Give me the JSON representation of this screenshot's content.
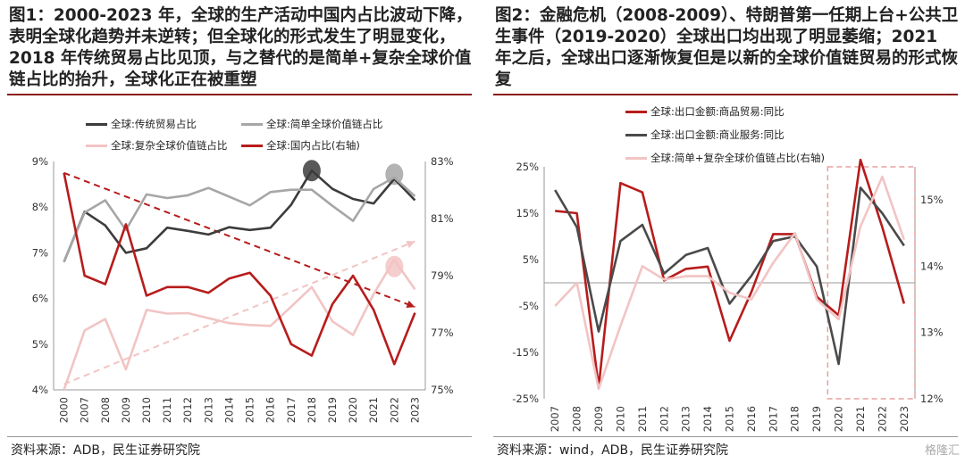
{
  "panels": [
    {
      "title": "图1：2000-2023 年，全球的生产活动中国内占比波动下降，表明全球化趋势并未逆转；但全球化的形式发生了明显变化，2018 年传统贸易占比见顶，与之替代的是简单+复杂全球价值链占比的抬升，全球化正在被重塑",
      "source": "资料来源：ADB，民生证券研究院"
    },
    {
      "title": "图2：金融危机（2008-2009）、特朗普第一任期上台+公共卫生事件（2019-2020）全球出口均出现了明显萎缩；2021 年之后，全球出口逐渐恢复但是以新的全球价值链贸易的形式恢复",
      "source": "资料来源：wind，ADB，民生证券研究院",
      "watermark": "格隆汇"
    }
  ],
  "chart_data": [
    {
      "type": "line",
      "x": [
        "2000",
        "2007",
        "2008",
        "2009",
        "2010",
        "2011",
        "2012",
        "2013",
        "2014",
        "2015",
        "2016",
        "2017",
        "2018",
        "2019",
        "2020",
        "2021",
        "2022",
        "2023"
      ],
      "series": [
        {
          "name": "全球:传统贸易占比",
          "color": "#3c3c3c",
          "axis": "left",
          "values": [
            6.8,
            7.9,
            7.6,
            7.0,
            7.1,
            7.55,
            7.48,
            7.4,
            7.56,
            7.5,
            7.55,
            8.05,
            8.8,
            8.4,
            8.18,
            8.08,
            8.62,
            8.15
          ]
        },
        {
          "name": "全球:简单全球价值链占比",
          "color": "#a6a6a6",
          "axis": "left",
          "values": [
            6.8,
            7.88,
            8.15,
            7.5,
            8.28,
            8.2,
            8.26,
            8.42,
            8.23,
            8.04,
            8.33,
            8.38,
            8.38,
            8.03,
            7.7,
            8.4,
            8.65,
            8.24
          ]
        },
        {
          "name": "全球:复杂全球价值链占比",
          "color": "#f2c4c4",
          "axis": "left",
          "values": [
            4.0,
            5.3,
            5.55,
            4.45,
            5.75,
            5.67,
            5.68,
            5.57,
            5.46,
            5.42,
            5.4,
            5.82,
            6.25,
            5.5,
            5.2,
            6.1,
            6.85,
            6.2
          ]
        },
        {
          "name": "全球:国内占比(右轴)",
          "color": "#b71c1c",
          "axis": "right",
          "values": [
            82.6,
            79.0,
            78.7,
            80.8,
            78.3,
            78.6,
            78.6,
            78.4,
            78.9,
            79.1,
            78.3,
            76.6,
            76.2,
            78.0,
            79.0,
            77.8,
            75.9,
            77.7
          ]
        }
      ],
      "trend_lines": [
        {
          "color": "#b71c1c",
          "from": {
            "x": "2000",
            "y": 82.6
          },
          "to": {
            "x": "2023",
            "y": 77.9
          }
        },
        {
          "color": "#f2c4c4",
          "from": {
            "x": "2000",
            "y": 75.2
          },
          "to": {
            "x": "2023",
            "y": 80.2
          }
        }
      ],
      "highlights": [
        {
          "x": "2018",
          "y": 8.8,
          "color": "#3c3c3c"
        },
        {
          "x": "2022",
          "y": 8.72,
          "color": "#a6a6a6"
        },
        {
          "x": "2022",
          "y": 6.7,
          "color": "#f2c4c4"
        }
      ],
      "left_axis": {
        "ylim": [
          4,
          9
        ],
        "ticks": [
          "4%",
          "5%",
          "6%",
          "7%",
          "8%",
          "9%"
        ]
      },
      "right_axis": {
        "ylim": [
          75,
          83
        ],
        "ticks": [
          "75%",
          "77%",
          "79%",
          "81%",
          "83%"
        ]
      }
    },
    {
      "type": "line",
      "x": [
        "2007",
        "2008",
        "2009",
        "2010",
        "2011",
        "2012",
        "2013",
        "2014",
        "2015",
        "2016",
        "2017",
        "2018",
        "2019",
        "2020",
        "2021",
        "2022",
        "2023"
      ],
      "series": [
        {
          "name": "全球:出口金额:商品贸易:同比",
          "color": "#b71c1c",
          "axis": "left",
          "values": [
            15.5,
            15,
            -22.5,
            21.5,
            19.5,
            0.5,
            3,
            3.5,
            -12.5,
            -2,
            10.5,
            10.5,
            -3,
            -7,
            26.5,
            12,
            -4.5
          ]
        },
        {
          "name": "全球:出口金额:商业服务:同比",
          "color": "#4a4a4a",
          "axis": "left",
          "values": [
            20,
            12,
            -10.5,
            9,
            12.5,
            2,
            6,
            7.5,
            -4.5,
            1.5,
            9,
            10,
            3.5,
            -17.5,
            20.5,
            15,
            8
          ]
        },
        {
          "name": "全球:简单+复杂全球价值链占比(右轴)",
          "color": "#f2c4c4",
          "axis": "right",
          "values": [
            13.4,
            13.75,
            12.15,
            13.1,
            14,
            13.8,
            13.85,
            13.85,
            13.6,
            13.5,
            14.05,
            14.5,
            13.5,
            13.2,
            14.6,
            15.35,
            14.4
          ]
        }
      ],
      "highlight_box": {
        "from": "2020",
        "to": "2023"
      },
      "left_axis": {
        "ylim": [
          -25,
          25
        ],
        "ticks": [
          "-25%",
          "-15%",
          "-5%",
          "5%",
          "15%",
          "25%"
        ]
      },
      "right_axis": {
        "ylim": [
          12,
          15.5
        ],
        "ticks": [
          "12%",
          "13%",
          "14%",
          "15%"
        ]
      }
    }
  ]
}
